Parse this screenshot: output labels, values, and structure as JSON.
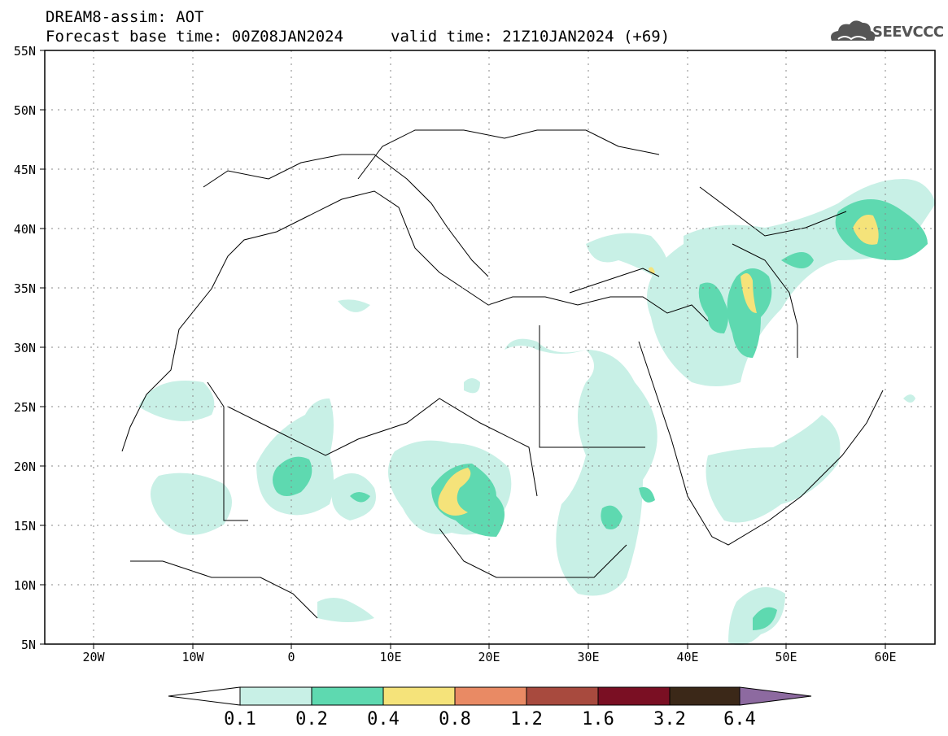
{
  "header": {
    "model_field": "DREAM8-assim: AOT",
    "base_time": "Forecast base time: 00Z08JAN2024",
    "valid_time": "valid time: 21Z10JAN2024 (+69)",
    "logo_text": "SEEVCCC"
  },
  "map": {
    "lat_labels": [
      "55N",
      "50N",
      "45N",
      "40N",
      "35N",
      "30N",
      "25N",
      "20N",
      "15N",
      "10N",
      "5N"
    ],
    "lon_labels": [
      "20W",
      "10W",
      "0",
      "10E",
      "20E",
      "30E",
      "40E",
      "50E",
      "60E"
    ],
    "extent": {
      "lon": [
        -25,
        65
      ],
      "lat": [
        5,
        55
      ]
    },
    "gridlines": "dotted"
  },
  "colorbar": {
    "levels": [
      "0.1",
      "0.2",
      "0.4",
      "0.8",
      "1.2",
      "1.6",
      "3.2",
      "6.4"
    ],
    "colors": [
      "#ffffff",
      "#c8f0e6",
      "#5ed9b0",
      "#f5e37a",
      "#e98a64",
      "#a84a3e",
      "#7a0f23",
      "#3b2818",
      "#8d6aa0"
    ]
  }
}
